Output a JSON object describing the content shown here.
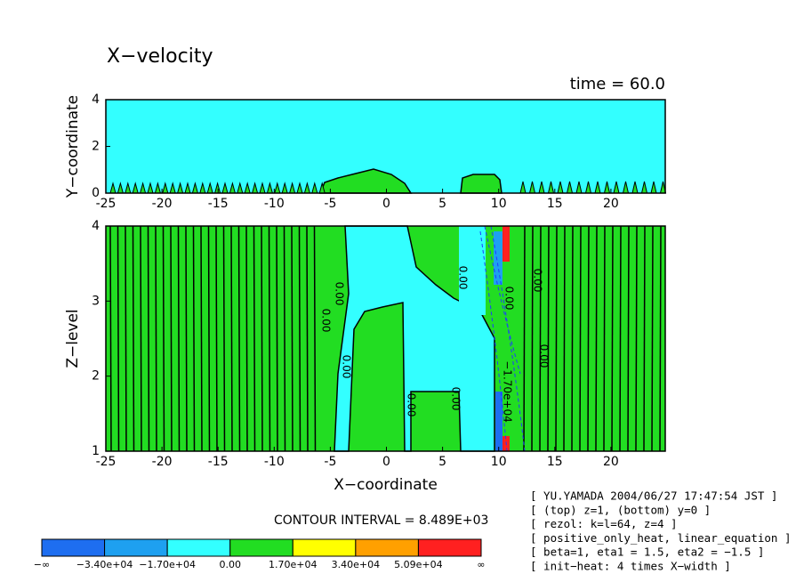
{
  "title": "X−velocity",
  "time": "time = 60.0",
  "contour_interval": "CONTOUR INTERVAL = 8.489E+03",
  "colorbar": {
    "colors": [
      "#1e6ef0",
      "#1ea0f0",
      "#33ffff",
      "#22dd22",
      "#ffff00",
      "#ffa000",
      "#ff2020"
    ],
    "labels": [
      "−∞",
      "−3.40e+04",
      "−1.70e+04",
      "0.00",
      "1.70e+04",
      "3.40e+04",
      "5.09e+04",
      "∞"
    ]
  },
  "info": [
    "[ YU.YAMADA 2004/06/27 17:47:54 JST ]",
    "[ (top) z=1, (bottom) y=0 ]",
    "[ rezol: k=l=64, z=4 ]",
    "[ positive_only_heat, linear_equation ]",
    "[ beta=1, eta1 = 1.5, eta2 = −1.5 ]",
    "[ init−heat: 4 times X−width ]"
  ],
  "chart_data": [
    {
      "type": "contour",
      "ylabel": "Y−coordinate",
      "xlim": [
        -25,
        24.84
      ],
      "ylim": [
        0,
        4
      ],
      "xticks": [
        -25,
        -20,
        -15,
        -10,
        -5,
        0,
        5,
        10,
        15,
        20
      ],
      "yticks": [
        0,
        2,
        4
      ]
    },
    {
      "type": "contour",
      "ylabel": "Z−level",
      "xlabel": "X−coordinate",
      "xlim": [
        -25,
        24.84
      ],
      "ylim": [
        1,
        4
      ],
      "xticks": [
        -25,
        -20,
        -15,
        -10,
        -5,
        0,
        5,
        10,
        15,
        20
      ],
      "yticks": [
        1,
        2,
        3,
        4
      ],
      "contour_labels": [
        "0.00",
        "0.00",
        "0.00",
        "0.00",
        "0.00",
        "0.00",
        "0.00",
        "0.00",
        "0.00",
        "−1.70e+04"
      ]
    }
  ]
}
